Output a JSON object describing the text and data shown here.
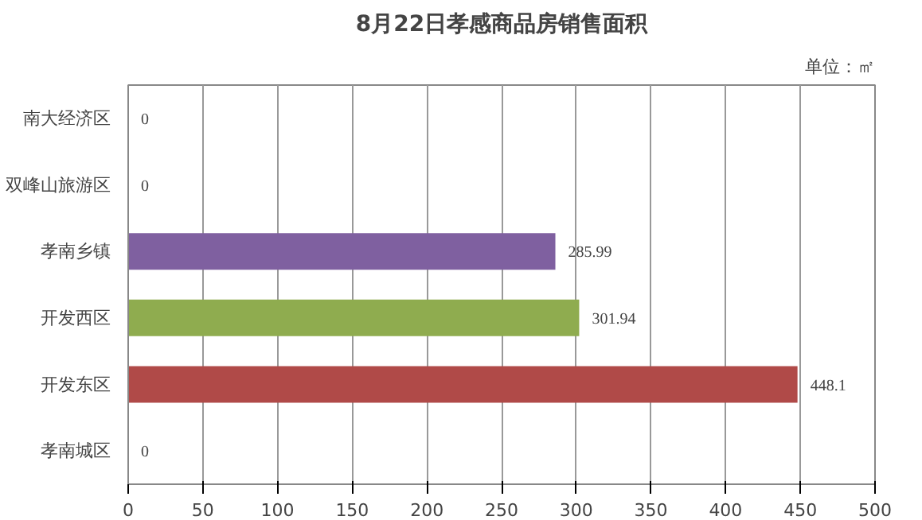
{
  "chart_data": {
    "type": "bar",
    "orientation": "horizontal",
    "title": "8月22日孝感商品房销售面积",
    "categories": [
      "南大经济区",
      "双峰山旅游区",
      "孝南乡镇",
      "开发西区",
      "开发东区",
      "孝南城区"
    ],
    "values": [
      0,
      0,
      285.99,
      301.94,
      448.1,
      0
    ],
    "colors": [
      "#7f60a0",
      "#7f60a0",
      "#7f60a0",
      "#8fac4f",
      "#b04a48",
      "#4f81bd"
    ],
    "xlim": [
      0,
      500
    ],
    "xticks": [
      0,
      50,
      100,
      150,
      200,
      250,
      300,
      350,
      400,
      450,
      500
    ],
    "grid": "x",
    "data_labels": true,
    "annotations": [
      "单位：㎡"
    ]
  }
}
